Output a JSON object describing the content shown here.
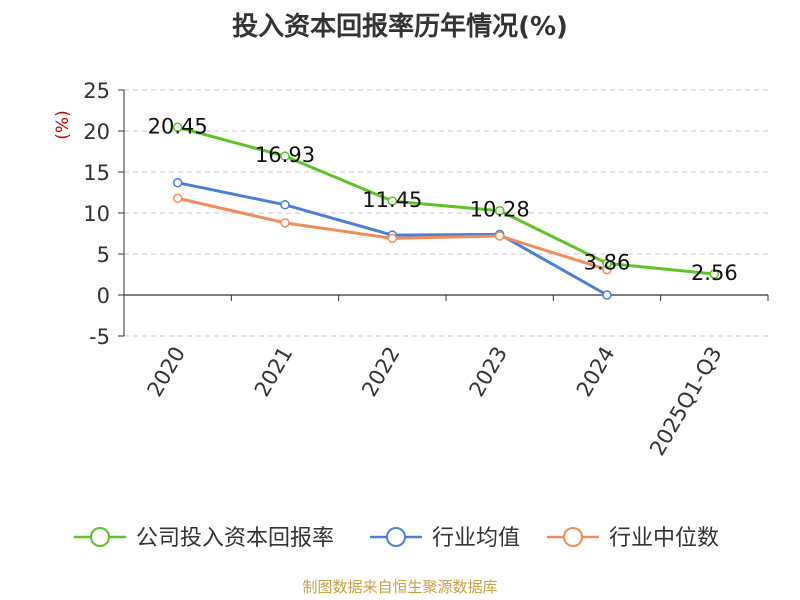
{
  "colors": {
    "company": "#5cc424",
    "industry_avg": "#4a80d8",
    "industry_median": "#f28c5a",
    "ylabel": "#cc0000",
    "source": "#c8a046"
  },
  "chart_data": {
    "type": "line",
    "title": "投入资本回报率历年情况(%)",
    "ylabel": "(%)",
    "categories": [
      "2020",
      "2021",
      "2022",
      "2023",
      "2024",
      "2025Q1-Q3"
    ],
    "ylim": [
      -5,
      25
    ],
    "yticks": [
      -5,
      0,
      5,
      10,
      15,
      20,
      25
    ],
    "grid": true,
    "legend_position": "bottom",
    "series": [
      {
        "name": "公司投入资本回报率",
        "color_key": "company",
        "values": [
          20.45,
          16.93,
          11.45,
          10.28,
          3.86,
          2.56
        ],
        "labels": [
          "20.45",
          "16.93",
          "11.45",
          "10.28",
          "3.86",
          "2.56"
        ]
      },
      {
        "name": "行业均值",
        "color_key": "industry_avg",
        "values": [
          13.7,
          11.0,
          7.3,
          7.4,
          0.0,
          null
        ]
      },
      {
        "name": "行业中位数",
        "color_key": "industry_median",
        "values": [
          11.8,
          8.8,
          6.9,
          7.2,
          3.1,
          null
        ]
      }
    ]
  },
  "source": "制图数据来自恒生聚源数据库"
}
